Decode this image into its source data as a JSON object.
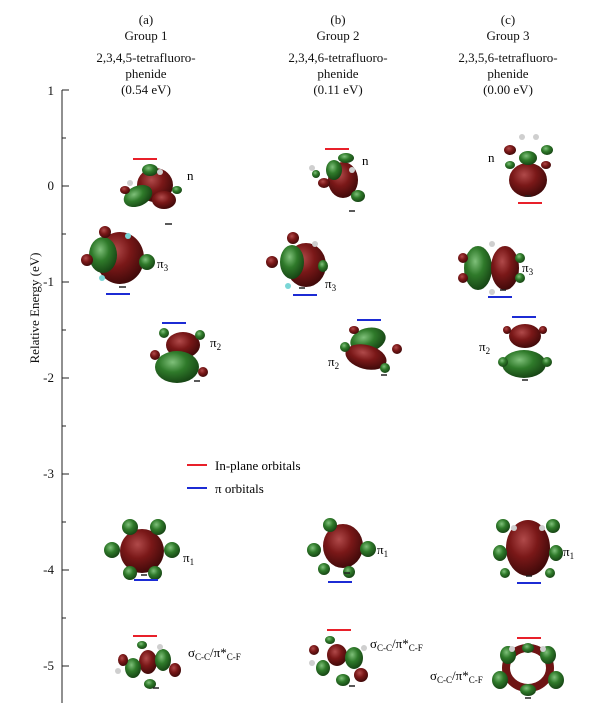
{
  "axis": {
    "ylabel": "Relative Energy (eV)",
    "ticks": [
      "1",
      "0",
      "-1",
      "-2",
      "-3",
      "-4",
      "-5"
    ]
  },
  "groups": [
    {
      "letter": "(a)",
      "name": "Group 1",
      "molecule": "2,3,4,5-tetrafluoro-\nphenide",
      "energy": "(0.54 eV)"
    },
    {
      "letter": "(b)",
      "name": "Group 2",
      "molecule": "2,3,4,6-tetrafluoro-\nphenide",
      "energy": "(0.11 eV)"
    },
    {
      "letter": "(c)",
      "name": "Group 3",
      "molecule": "2,3,5,6-tetrafluoro-\nphenide",
      "energy": "(0.00 eV)"
    }
  ],
  "legend": {
    "inplane": {
      "label": "In-plane orbitals",
      "color": "#e8202a"
    },
    "pi": {
      "label": "π orbitals",
      "color": "#1c2bd4"
    }
  },
  "labels": {
    "n": "n",
    "pi3": "π",
    "pi3_sub": "3",
    "pi2": "π",
    "pi2_sub": "2",
    "pi1": "π",
    "pi1_sub": "1",
    "sigma": "σ",
    "sigma_sub": "C-C",
    "slash": "/π*",
    "pistar_sub": "C-F"
  },
  "colors": {
    "lobe_red": "#6e1414",
    "lobe_green": "#2f7a2a"
  }
}
